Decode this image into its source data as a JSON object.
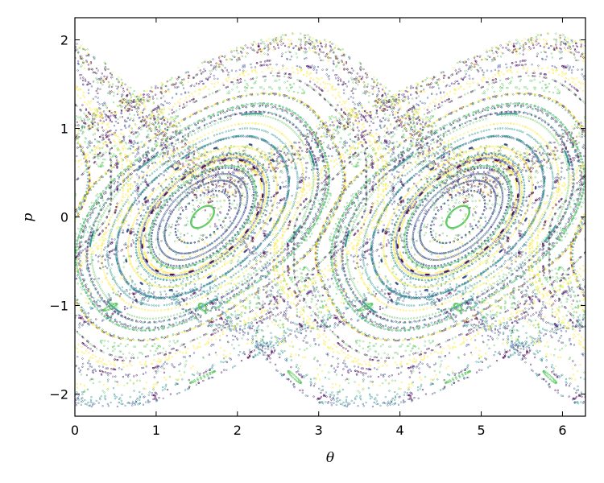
{
  "chart_data": {
    "type": "scatter",
    "title": "",
    "xlabel": "θ",
    "ylabel": "p",
    "xlim": [
      0,
      6.283
    ],
    "ylim": [
      -2.25,
      2.25
    ],
    "xticks": [
      0,
      1,
      2,
      3,
      4,
      5,
      6
    ],
    "yticks": [
      -2,
      -1,
      0,
      1,
      2
    ],
    "xtick_labels": [
      "0",
      "1",
      "2",
      "3",
      "4",
      "5",
      "6"
    ],
    "ytick_labels": [
      "−2",
      "−1",
      "0",
      "1",
      "2"
    ],
    "grid": false,
    "legend": "none",
    "colormap": "viridis",
    "colors": [
      "#440154",
      "#3b528b",
      "#21918c",
      "#5ec962",
      "#fde725"
    ],
    "description_series": [
      {
        "center_x": 1.571,
        "center_y": 0,
        "extent_x": 1.35,
        "extent_y": 0.9
      },
      {
        "center_x": 4.712,
        "center_y": 0,
        "extent_x": 1.35,
        "extent_y": 0.9
      }
    ]
  }
}
